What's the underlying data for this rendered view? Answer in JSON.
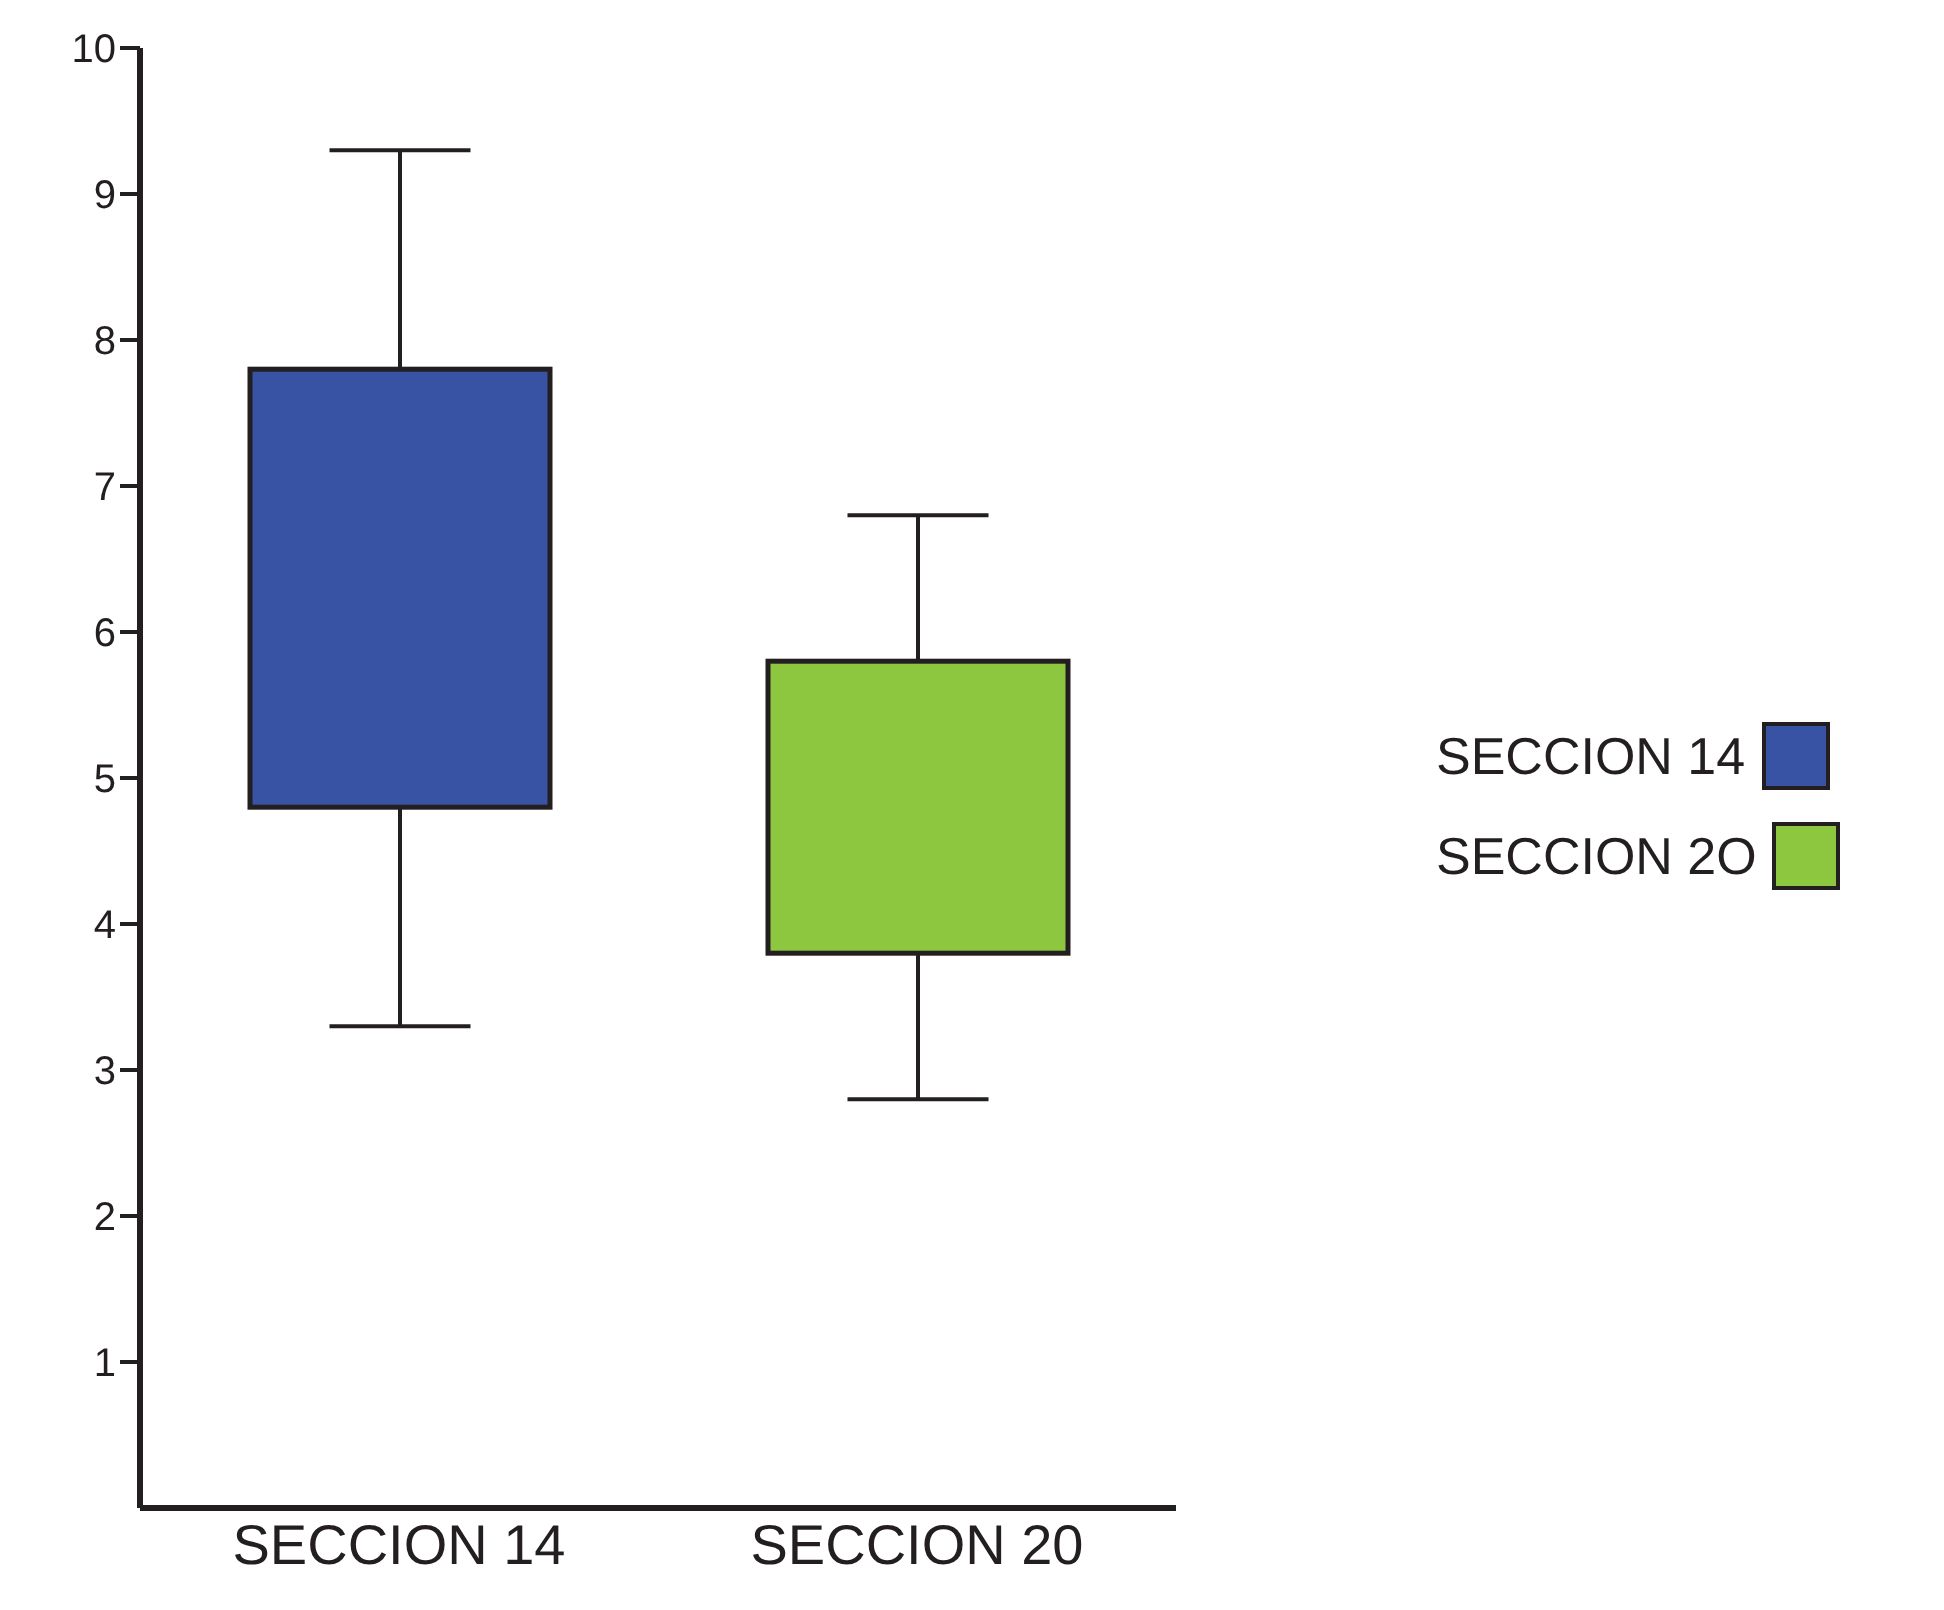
{
  "chart_data": {
    "type": "box",
    "categories": [
      "SECCION 14",
      "SECCION 20"
    ],
    "series": [
      {
        "name": "SECCION 14",
        "color": "#3853a4",
        "boxes": [
          {
            "low": 3.3,
            "q1": 4.8,
            "q3": 7.8,
            "high": 9.3
          },
          null
        ]
      },
      {
        "name": "SECCION 2O",
        "color": "#8dc63f",
        "boxes": [
          null,
          {
            "low": 2.8,
            "q1": 3.8,
            "q3": 5.8,
            "high": 6.8
          }
        ]
      }
    ],
    "ylim": [
      0,
      10
    ],
    "yticks": [
      1,
      2,
      3,
      4,
      5,
      6,
      7,
      8,
      9,
      10
    ],
    "grid": false,
    "legend": "right"
  }
}
